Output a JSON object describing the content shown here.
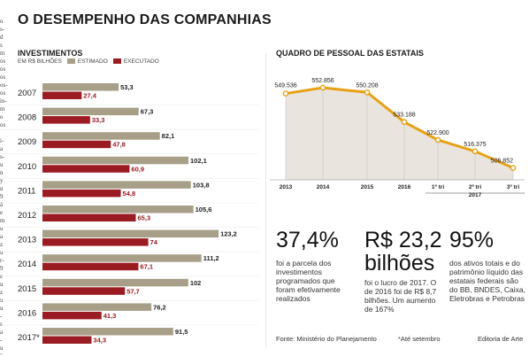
{
  "title": "O DESEMPENHO DAS COMPANHIAS",
  "cut_text": "o\ns-\nd\ns\nm\nos\nos\nos\nos-\nos\nin-\nm\no\nos\n\ni-\na\ns-\nu\nn\ny\nu\n9\ná\ne\nm\nu\na\nz\nu\nr-\n9\ne\nu\nz\nu\nu\n-\ns\na\n-\nu\n9",
  "invest": {
    "heading": "INVESTIMENTOS",
    "unit": "EM R$ BILHÕES",
    "legend_estimated": "ESTIMADO",
    "legend_executed": "EXECUTADO"
  },
  "staff": {
    "heading": "QUADRO DE PESSOAL DAS ESTATAIS"
  },
  "colors": {
    "estimated": "#a89f88",
    "executed": "#9b1b22",
    "line": "#e6a117",
    "area": "#e9e4de"
  },
  "chart_data": [
    {
      "type": "bar",
      "title": "INVESTIMENTOS",
      "subtitle": "EM R$ BILHÕES",
      "categories": [
        "2007",
        "2008",
        "2009",
        "2010",
        "2011",
        "2012",
        "2013",
        "2014",
        "2015",
        "2016",
        "2017*"
      ],
      "series": [
        {
          "name": "ESTIMADO",
          "values": [
            53.3,
            67.3,
            82.1,
            102.1,
            103.8,
            105.6,
            123.2,
            111.2,
            102,
            76.2,
            91.5
          ],
          "labels": [
            "53,3",
            "67,3",
            "82,1",
            "102,1",
            "103,8",
            "105,6",
            "123,2",
            "111,2",
            "102",
            "76,2",
            "91,5"
          ]
        },
        {
          "name": "EXECUTADO",
          "values": [
            27.4,
            33.3,
            47.8,
            60.9,
            54.8,
            65.3,
            74,
            67.1,
            57.7,
            41.3,
            34.3
          ],
          "labels": [
            "27,4",
            "33,3",
            "47,8",
            "60,9",
            "54,8",
            "65,3",
            "74",
            "67,1",
            "57,7",
            "41,3",
            "34,3"
          ]
        }
      ],
      "xlim": [
        0,
        125
      ],
      "orientation": "horizontal",
      "legend": "top-left"
    },
    {
      "type": "area",
      "title": "QUADRO DE PESSOAL DAS ESTATAIS",
      "x": [
        "2013",
        "2014",
        "2015",
        "2016",
        "1º tri",
        "2º tri",
        "3º tri"
      ],
      "x_group": "2017",
      "values": [
        549536,
        552856,
        550208,
        533188,
        522900,
        516375,
        506852
      ],
      "labels": [
        "549.536",
        "552.856",
        "550.208",
        "533.188",
        "522.900",
        "516.375",
        "506.852"
      ],
      "ylim": [
        500000,
        560000
      ]
    }
  ],
  "stats": [
    {
      "big": "37,4%",
      "desc": "foi a parcela dos investimentos programados que foram efetivamente realizados"
    },
    {
      "big": "R$ 23,2",
      "big2": "bilhões",
      "desc": "foi o lucro de 2017. O de 2016 foi de R$ 8,7 bilhões. Um aumento de 167%"
    },
    {
      "big": "95%",
      "desc": "dos ativos totais e do patrimônio líquido das estatais federais são do BB, BNDES, Caixa, Eletrobras e Petrobras"
    }
  ],
  "footer": {
    "source": "Fonte: Ministério do Planejamento",
    "note": "*Até setembro",
    "credit": "Editoria de Arte"
  }
}
